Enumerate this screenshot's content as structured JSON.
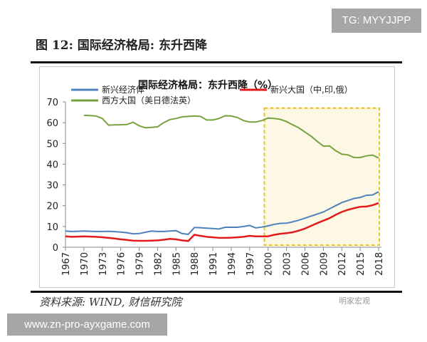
{
  "watermarks": {
    "top": "TG: MYYJJPP",
    "bottom": "www.zn-pro-ayxgame.com",
    "logo_text": "明家宏观"
  },
  "figure_title": "图 12:  国际经济格局:  东升西降",
  "source": "资料来源:  WIND,  财信研究院",
  "chart_data": {
    "type": "line",
    "title": "国际经济格局：东升西降（%）",
    "xlabel": "",
    "ylabel": "",
    "ylim": [
      0,
      70
    ],
    "yticks": [
      0,
      10,
      20,
      30,
      40,
      50,
      60,
      70
    ],
    "xticks": [
      "1967",
      "1970",
      "1973",
      "1976",
      "1979",
      "1982",
      "1985",
      "1988",
      "1991",
      "1994",
      "1997",
      "2000",
      "2003",
      "2006",
      "2009",
      "2012",
      "2015",
      "2018"
    ],
    "grid": false,
    "legend": "top",
    "highlight": {
      "from": 1999.4,
      "to": 2018,
      "ymin": 1,
      "ymax": 67,
      "fill": "#fdf8e6",
      "border": "#e8c020"
    },
    "x": [
      1967,
      1968,
      1969,
      1970,
      1971,
      1972,
      1973,
      1974,
      1975,
      1976,
      1977,
      1978,
      1979,
      1980,
      1981,
      1982,
      1983,
      1984,
      1985,
      1986,
      1987,
      1988,
      1989,
      1990,
      1991,
      1992,
      1993,
      1994,
      1995,
      1996,
      1997,
      1998,
      1999,
      2000,
      2001,
      2002,
      2003,
      2004,
      2005,
      2006,
      2007,
      2008,
      2009,
      2010,
      2011,
      2012,
      2013,
      2014,
      2015,
      2016,
      2017,
      2018
    ],
    "series": [
      {
        "name": "新兴经济体",
        "color": "#4f81bd",
        "values": [
          7.8,
          7.6,
          7.7,
          7.8,
          7.7,
          7.6,
          7.6,
          7.7,
          7.5,
          7.3,
          7.0,
          6.5,
          6.6,
          7.2,
          7.8,
          7.6,
          7.6,
          7.8,
          8.0,
          6.6,
          6.2,
          9.5,
          9.4,
          9.2,
          9.0,
          8.8,
          9.6,
          9.6,
          9.6,
          10.0,
          10.5,
          9.3,
          9.7,
          10.3,
          11.0,
          11.5,
          11.6,
          12.2,
          13.0,
          14.0,
          15.0,
          16.0,
          17.0,
          18.5,
          20.0,
          21.5,
          22.5,
          23.5,
          24.0,
          25.0,
          25.2,
          26.7
        ]
      },
      {
        "name": "新兴大国（中,印,俄）",
        "color": "#e31a1c",
        "values": [
          5.3,
          5.0,
          5.1,
          5.2,
          5.1,
          5.0,
          4.8,
          4.5,
          4.2,
          3.8,
          3.5,
          3.2,
          3.1,
          3.1,
          3.2,
          3.3,
          3.6,
          4.0,
          3.8,
          3.3,
          3.0,
          6.0,
          5.5,
          5.0,
          4.8,
          4.5,
          4.5,
          4.6,
          4.8,
          5.0,
          5.5,
          5.2,
          5.2,
          5.3,
          6.0,
          6.5,
          6.8,
          7.2,
          8.0,
          9.0,
          10.3,
          11.6,
          12.8,
          14.0,
          15.6,
          17.0,
          18.0,
          18.8,
          19.5,
          19.6,
          20.2,
          21.3
        ]
      },
      {
        "name": "西方大国（美日德法英）",
        "color": "#77a33f",
        "values": [
          null,
          null,
          null,
          63.5,
          63.4,
          63.2,
          62.0,
          58.8,
          58.9,
          59.0,
          59.1,
          60.2,
          58.5,
          57.5,
          57.7,
          58.0,
          60.0,
          61.5,
          62.0,
          62.8,
          63.0,
          63.2,
          63.0,
          61.3,
          61.3,
          62.0,
          63.3,
          63.2,
          62.5,
          61.0,
          60.3,
          60.3,
          61.0,
          62.2,
          62.0,
          61.6,
          60.5,
          59.0,
          57.5,
          55.5,
          53.5,
          51.0,
          48.7,
          48.8,
          46.5,
          44.8,
          44.5,
          43.2,
          43.2,
          44.0,
          44.4,
          43.0
        ]
      }
    ]
  }
}
